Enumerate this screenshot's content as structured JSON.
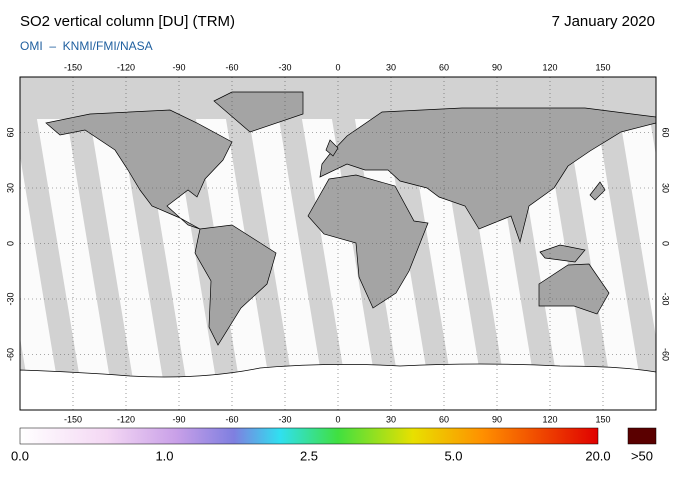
{
  "header": {
    "title": "SO2 vertical column [DU] (TRM)",
    "date": "7 January 2020",
    "source": "OMI  –  KNMI/FMI/NASA"
  },
  "map": {
    "xlim": [
      -180,
      180
    ],
    "ylim": [
      -90,
      90
    ],
    "xticks": [
      -150,
      -120,
      -90,
      -60,
      -30,
      0,
      30,
      60,
      90,
      120,
      150
    ],
    "yticks": [
      -60,
      -30,
      0,
      30,
      60
    ]
  },
  "colorbar": {
    "labels": [
      "0.0",
      "1.0",
      "2.5",
      "5.0",
      "20.0"
    ],
    "overflow_label": ">50"
  }
}
